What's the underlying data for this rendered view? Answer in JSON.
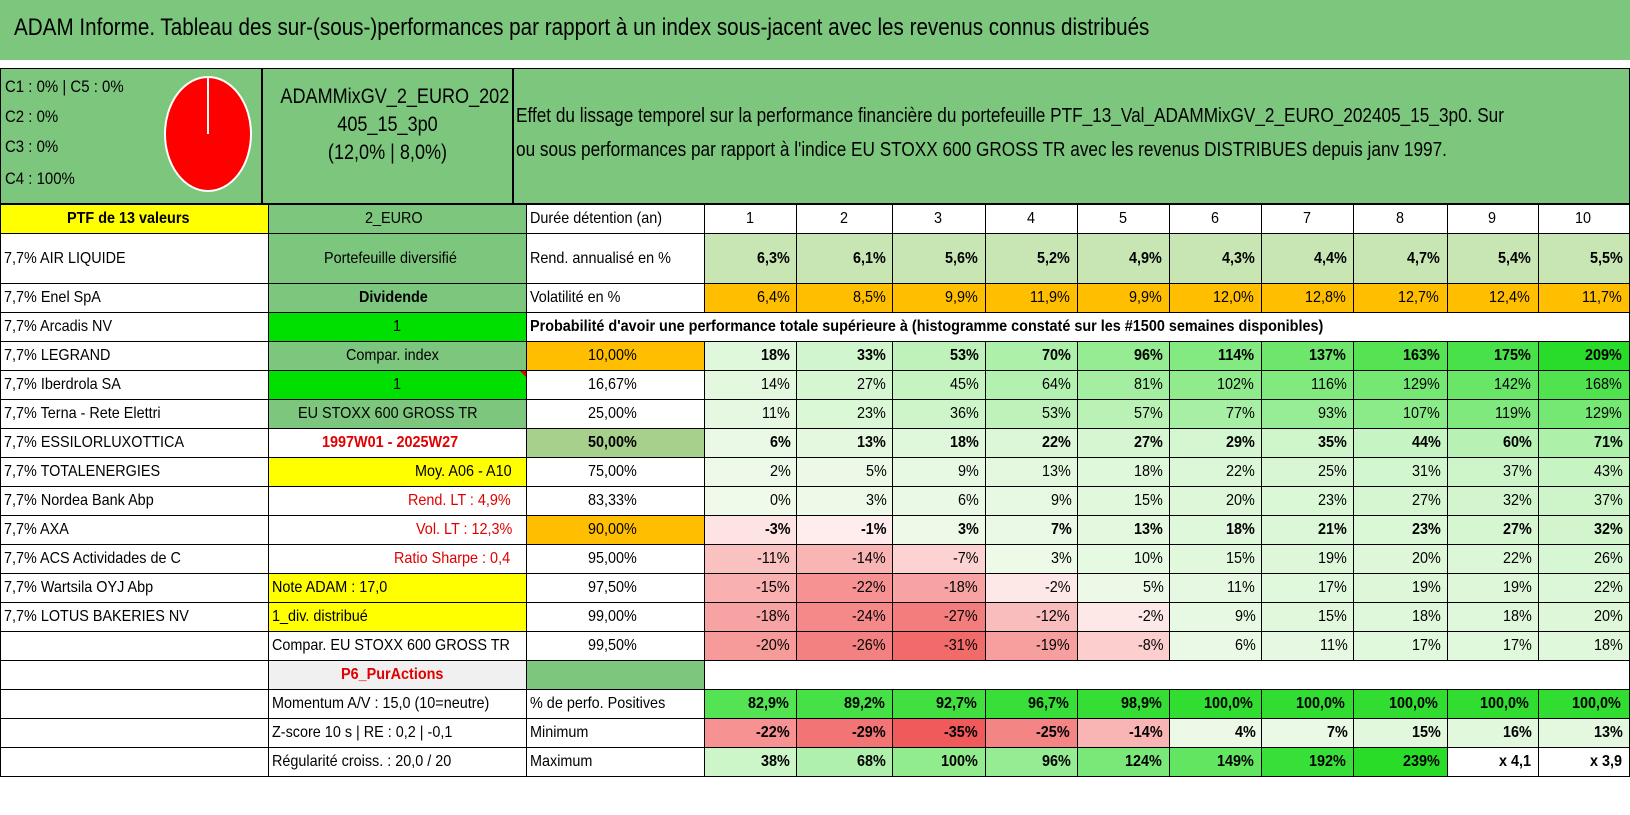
{
  "title": "ADAM Informe. Tableau des sur-(sous-)performances par rapport à un index sous-jacent avec les revenus connus distribués",
  "allocation": [
    "C1 : 0% | C5 : 0%",
    "C2 : 0%",
    "C3 : 0%",
    "C4 : 100%"
  ],
  "portfolio_name": [
    "ADAMMixGV_2_EURO_202",
    "405_15_3p0",
    "(12,0% | 8,0%)"
  ],
  "description": [
    "Effet du lissage temporel sur la performance financière du portefeuille PTF_13_Val_ADAMMixGV_2_EURO_202405_15_3p0. Sur",
    "ou sous performances par rapport à l'indice EU STOXX 600 GROSS TR avec les revenus DISTRIBUES depuis janv 1997."
  ],
  "colors": {
    "header_green": "#7dc67d",
    "yellow": "#ffff00",
    "orange": "#ffbf00",
    "bright_green": "#00e000",
    "pie_red": "#ff0000"
  },
  "row_header": {
    "left": "PTF de 13 valeurs",
    "mid": "2_EURO",
    "label": "Durée détention (an)",
    "years": [
      "1",
      "2",
      "3",
      "4",
      "5",
      "6",
      "7",
      "8",
      "9",
      "10"
    ]
  },
  "holdings": [
    "7,7% AIR LIQUIDE",
    "7,7% Enel SpA",
    "7,7% Arcadis NV",
    "7,7% LEGRAND",
    "7,7% Iberdrola SA",
    "7,7% Terna - Rete Elettri",
    "7,7% ESSILORLUXOTTICA",
    "7,7% TOTALENERGIES",
    "7,7% Nordea Bank Abp",
    "7,7% AXA",
    "7,7% ACS Actividades de C",
    "7,7% Wartsila OYJ Abp",
    "7,7% LOTUS BAKERIES NV"
  ],
  "side_info": [
    "Portefeuille diversifié",
    "Dividende",
    "1",
    "Compar. index",
    "1",
    "EU STOXX 600 GROSS TR",
    "1997W01 - 2025W27",
    "Moy. A06 - A10",
    "Rend. LT : 4,9%",
    "Vol. LT : 12,3%",
    "Ratio Sharpe : 0,4",
    "Note ADAM : 17,0",
    "1_div. distribué",
    "Compar. EU STOXX 600 GROSS TR",
    "P6_PurActions"
  ],
  "rend": {
    "label": "Rend. annualisé en %",
    "values": [
      "6,3%",
      "6,1%",
      "5,6%",
      "5,2%",
      "4,9%",
      "4,3%",
      "4,4%",
      "4,7%",
      "5,4%",
      "5,5%"
    ]
  },
  "vol": {
    "label": "Volatilité en %",
    "values": [
      "6,4%",
      "8,5%",
      "9,9%",
      "11,9%",
      "9,9%",
      "12,0%",
      "12,8%",
      "12,7%",
      "12,4%",
      "11,7%"
    ]
  },
  "prob_title": "Probabilité d'avoir une performance totale supérieure à (histogramme constaté sur les #1500 semaines disponibles)",
  "prob_rows": [
    {
      "p": "10,00%",
      "values": [
        "18%",
        "33%",
        "53%",
        "70%",
        "96%",
        "114%",
        "137%",
        "163%",
        "175%",
        "209%"
      ]
    },
    {
      "p": "16,67%",
      "values": [
        "14%",
        "27%",
        "45%",
        "64%",
        "81%",
        "102%",
        "116%",
        "129%",
        "142%",
        "168%"
      ]
    },
    {
      "p": "25,00%",
      "values": [
        "11%",
        "23%",
        "36%",
        "53%",
        "57%",
        "77%",
        "93%",
        "107%",
        "119%",
        "129%"
      ]
    },
    {
      "p": "50,00%",
      "values": [
        "6%",
        "13%",
        "18%",
        "22%",
        "27%",
        "29%",
        "35%",
        "44%",
        "60%",
        "71%"
      ]
    },
    {
      "p": "75,00%",
      "values": [
        "2%",
        "5%",
        "9%",
        "13%",
        "18%",
        "22%",
        "25%",
        "31%",
        "37%",
        "43%"
      ]
    },
    {
      "p": "83,33%",
      "values": [
        "0%",
        "3%",
        "6%",
        "9%",
        "15%",
        "20%",
        "23%",
        "27%",
        "32%",
        "37%"
      ]
    },
    {
      "p": "90,00%",
      "values": [
        "-3%",
        "-1%",
        "3%",
        "7%",
        "13%",
        "18%",
        "21%",
        "23%",
        "27%",
        "32%"
      ]
    },
    {
      "p": "95,00%",
      "values": [
        "-11%",
        "-14%",
        "-7%",
        "3%",
        "10%",
        "15%",
        "19%",
        "20%",
        "22%",
        "26%"
      ]
    },
    {
      "p": "97,50%",
      "values": [
        "-15%",
        "-22%",
        "-18%",
        "-2%",
        "5%",
        "11%",
        "17%",
        "19%",
        "19%",
        "22%"
      ]
    },
    {
      "p": "99,00%",
      "values": [
        "-18%",
        "-24%",
        "-27%",
        "-12%",
        "-2%",
        "9%",
        "15%",
        "18%",
        "18%",
        "20%"
      ]
    },
    {
      "p": "99,50%",
      "values": [
        "-20%",
        "-26%",
        "-31%",
        "-19%",
        "-8%",
        "6%",
        "11%",
        "17%",
        "17%",
        "18%"
      ]
    }
  ],
  "summary": [
    {
      "left": "Momentum A/V : 15,0 (10=neutre)",
      "label": "% de perfo. Positives",
      "values": [
        "82,9%",
        "89,2%",
        "92,7%",
        "96,7%",
        "98,9%",
        "100,0%",
        "100,0%",
        "100,0%",
        "100,0%",
        "100,0%"
      ]
    },
    {
      "left": "Z-score 10 s | RE : 0,2 | -0,1",
      "label": "Minimum",
      "values": [
        "-22%",
        "-29%",
        "-35%",
        "-25%",
        "-14%",
        "4%",
        "7%",
        "15%",
        "16%",
        "13%"
      ]
    },
    {
      "left": "Régularité croiss. : 20,0 / 20",
      "label": "Maximum",
      "values": [
        "38%",
        "68%",
        "100%",
        "96%",
        "124%",
        "149%",
        "192%",
        "239%",
        "x 4,1",
        "x 3,9"
      ]
    }
  ]
}
